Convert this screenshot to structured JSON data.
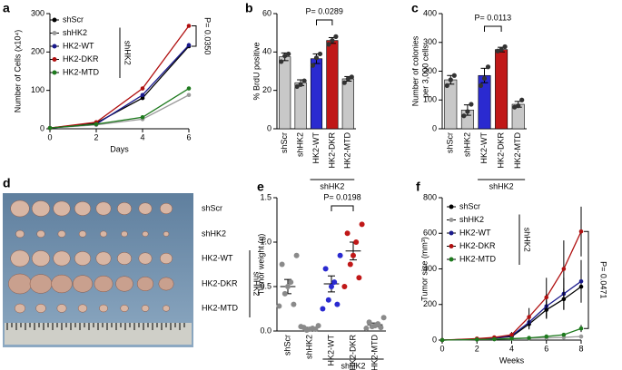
{
  "chart_data": [
    {
      "panel": "a",
      "type": "line",
      "xlabel": "Days",
      "ylabel": "Number of Cells (x10⁴)",
      "x": [
        0,
        2,
        4,
        6
      ],
      "xlim": [
        0,
        6
      ],
      "xticks": [
        0,
        2,
        4,
        6
      ],
      "ylim": [
        0,
        300
      ],
      "yticks": [
        0,
        100,
        200,
        300
      ],
      "series": [
        {
          "name": "shScr",
          "color": "#000000",
          "values": [
            2,
            15,
            80,
            215
          ]
        },
        {
          "name": "shHK2",
          "color": "#9a9a9a",
          "values": [
            2,
            10,
            25,
            88
          ]
        },
        {
          "name": "HK2-WT",
          "color": "#1a1a8c",
          "values": [
            2,
            12,
            88,
            218
          ]
        },
        {
          "name": "HK2-DKR",
          "color": "#b01010",
          "values": [
            2,
            17,
            105,
            268
          ]
        },
        {
          "name": "HK2-MTD",
          "color": "#1e7a1e",
          "values": [
            2,
            12,
            30,
            105
          ]
        }
      ],
      "group_label": "shHK2",
      "annotation": "P= 0.0350"
    },
    {
      "panel": "b",
      "type": "bar",
      "ylabel": "% BrdU positive",
      "categories": [
        "shScr",
        "shHK2",
        "HK2-WT",
        "HK2-DKR",
        "HK2-MTD"
      ],
      "values": [
        37.5,
        24,
        36.5,
        46,
        26
      ],
      "errors": [
        2,
        1.5,
        2.5,
        1.5,
        1.2
      ],
      "points": [
        [
          39,
          38,
          35
        ],
        [
          25,
          23,
          22
        ],
        [
          39,
          37,
          33
        ],
        [
          48,
          46,
          44
        ],
        [
          27,
          26,
          24
        ]
      ],
      "colors": [
        "#c8c8c8",
        "#c8c8c8",
        "#2a2ad0",
        "#c01818",
        "#c8c8c8"
      ],
      "ylim": [
        0,
        60
      ],
      "yticks": [
        0,
        20,
        40,
        60
      ],
      "group_label": "shHK2",
      "annotation": "P= 0.0289"
    },
    {
      "panel": "c",
      "type": "bar",
      "ylabel": [
        "Number of colonies",
        "per 3,000 cells"
      ],
      "categories": [
        "shScr",
        "shHK2",
        "HK2-WT",
        "HK2-DKR",
        "HK2-MTD"
      ],
      "values": [
        170,
        65,
        185,
        275,
        85
      ],
      "errors": [
        15,
        18,
        25,
        8,
        10
      ],
      "points": [
        [
          185,
          170,
          150
        ],
        [
          85,
          60,
          45
        ],
        [
          215,
          175,
          150
        ],
        [
          285,
          275,
          270
        ],
        [
          100,
          80,
          75
        ]
      ],
      "colors": [
        "#c8c8c8",
        "#c8c8c8",
        "#2a2ad0",
        "#c01818",
        "#c8c8c8"
      ],
      "ylim": [
        0,
        400
      ],
      "yticks": [
        0,
        100,
        200,
        300,
        400
      ],
      "group_label": "shHK2",
      "annotation": "P= 0.0113"
    },
    {
      "panel": "d",
      "type": "image",
      "labels": [
        "shScr",
        "shHK2",
        "HK2-WT",
        "HK2-DKR",
        "HK2-MTD"
      ],
      "group_label": "shHK2"
    },
    {
      "panel": "e",
      "type": "dot",
      "ylabel": "Tumor weight (g)",
      "categories": [
        "shScr",
        "shHK2",
        "HK2-WT",
        "HK2-DKR",
        "HK2-MTD"
      ],
      "values": [
        0.5,
        0.03,
        0.53,
        0.9,
        0.07
      ],
      "errors": [
        0.08,
        0.01,
        0.09,
        0.1,
        0.02
      ],
      "points": [
        [
          0.85,
          0.75,
          0.55,
          0.5,
          0.42,
          0.3,
          0.28
        ],
        [
          0.06,
          0.04,
          0.03,
          0.02,
          0.01,
          0.02,
          0.05
        ],
        [
          0.85,
          0.7,
          0.55,
          0.5,
          0.35,
          0.3,
          0.25
        ],
        [
          1.2,
          1.1,
          1.0,
          0.85,
          0.75,
          0.6,
          0.5
        ],
        [
          0.15,
          0.1,
          0.08,
          0.06,
          0.05,
          0.04,
          0.03
        ]
      ],
      "colors": [
        "#8a8a8a",
        "#8a8a8a",
        "#2a2ad0",
        "#c01818",
        "#8a8a8a"
      ],
      "ylim": [
        0,
        1.5
      ],
      "yticks": [
        {
          "value": 0,
          "label": "0.0"
        },
        0.5,
        {
          "value": 1,
          "label": "1.0"
        },
        1.5
      ],
      "group_label": "shHK2",
      "annotation": "P= 0.0198"
    },
    {
      "panel": "f",
      "type": "line",
      "xlabel": "Weeks",
      "ylabel": "Tumor size (mm³)",
      "x": [
        0,
        2,
        3,
        4,
        5,
        6,
        7,
        8
      ],
      "xlim": [
        0,
        8
      ],
      "xticks": [
        0,
        2,
        4,
        6,
        8
      ],
      "ylim": [
        0,
        800
      ],
      "yticks": [
        0,
        200,
        400,
        600,
        800
      ],
      "series": [
        {
          "name": "shScr",
          "color": "#000000",
          "values": [
            0,
            5,
            10,
            20,
            90,
            170,
            230,
            300
          ],
          "errors": [
            0,
            3,
            5,
            10,
            30,
            50,
            60,
            70
          ]
        },
        {
          "name": "shHK2",
          "color": "#9a9a9a",
          "values": [
            0,
            3,
            5,
            8,
            10,
            12,
            15,
            20
          ],
          "errors": [
            0,
            1,
            2,
            3,
            3,
            4,
            4,
            5
          ]
        },
        {
          "name": "HK2-WT",
          "color": "#1a1a8c",
          "values": [
            0,
            5,
            10,
            25,
            100,
            190,
            260,
            330
          ],
          "errors": [
            0,
            3,
            6,
            12,
            35,
            70,
            90,
            120
          ]
        },
        {
          "name": "HK2-DKR",
          "color": "#b01010",
          "values": [
            0,
            8,
            15,
            30,
            130,
            240,
            400,
            610
          ],
          "errors": [
            0,
            4,
            8,
            15,
            50,
            110,
            160,
            140
          ]
        },
        {
          "name": "HK2-MTD",
          "color": "#1e7a1e",
          "values": [
            0,
            3,
            5,
            8,
            12,
            20,
            30,
            65
          ],
          "errors": [
            0,
            1,
            2,
            3,
            5,
            8,
            10,
            20
          ]
        }
      ],
      "group_label": "shHK2",
      "annotation": "P= 0.0471"
    }
  ]
}
